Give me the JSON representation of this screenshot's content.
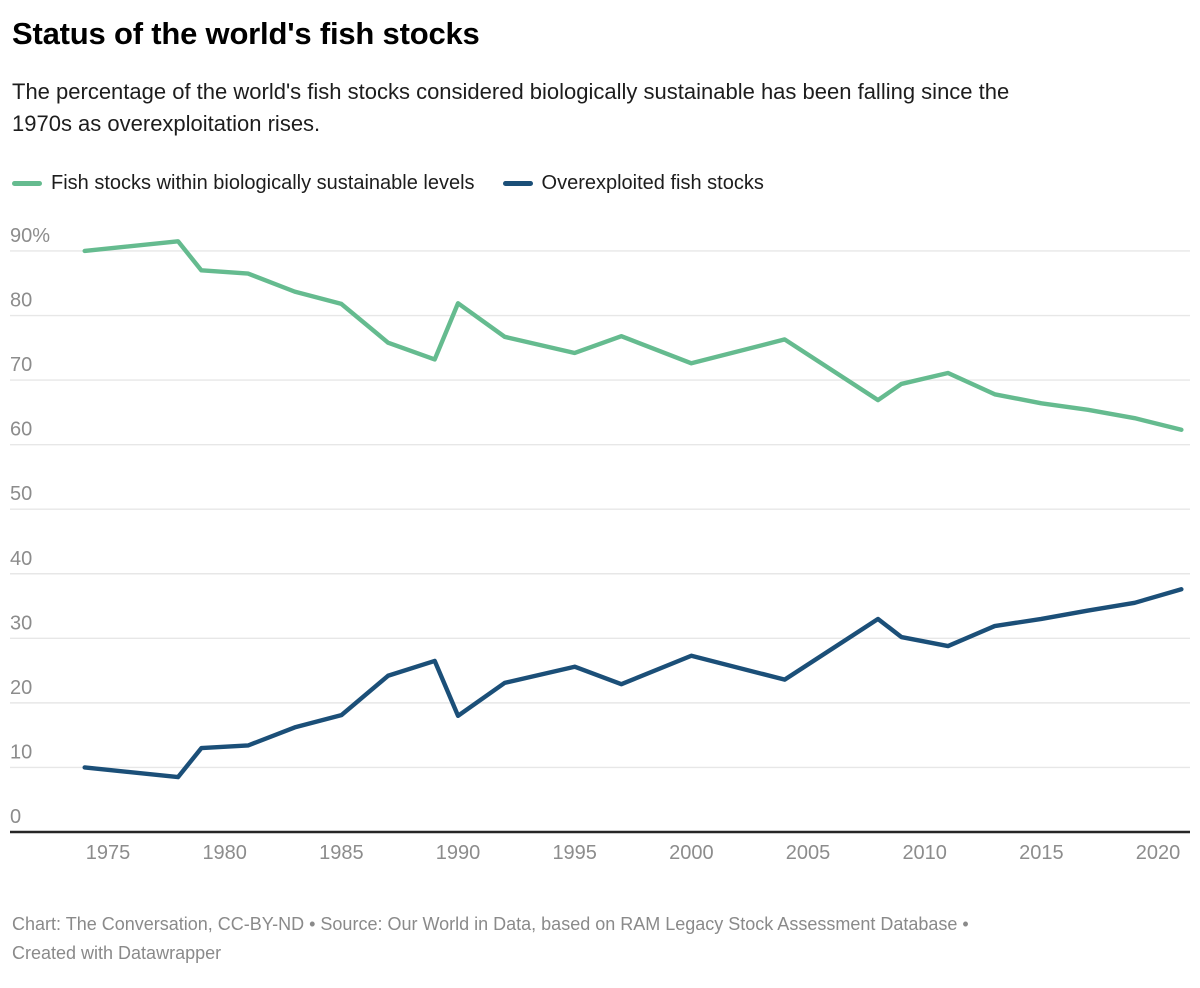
{
  "header": {
    "title": "Status of the world's fish stocks",
    "subtitle": "The percentage of the world's fish stocks considered biologically sustainable has been falling since the 1970s as overexploitation rises."
  },
  "chart_data": {
    "type": "line",
    "title": "Status of the world's fish stocks",
    "x": [
      1974,
      1978,
      1979,
      1981,
      1983,
      1985,
      1987,
      1989,
      1990,
      1992,
      1995,
      1997,
      2000,
      2004,
      2008,
      2009,
      2011,
      2013,
      2015,
      2017,
      2019,
      2021
    ],
    "series": [
      {
        "name": "Fish stocks within biologically sustainable levels",
        "color": "#65bb8f",
        "values": [
          90,
          91.5,
          87,
          86.5,
          83.7,
          81.8,
          75.8,
          73.2,
          81.9,
          76.7,
          74.2,
          76.8,
          72.6,
          76.3,
          66.9,
          69.4,
          71.1,
          67.8,
          66.4,
          65.4,
          64.1,
          62.3
        ]
      },
      {
        "name": "Overexploited fish stocks",
        "color": "#1b4f78",
        "values": [
          10,
          8.5,
          13,
          13.4,
          16.2,
          18.1,
          24.2,
          26.5,
          18,
          23.1,
          25.6,
          22.9,
          27.3,
          23.6,
          33,
          30.2,
          28.8,
          31.9,
          33,
          34.3,
          35.5,
          37.6
        ]
      }
    ],
    "xlim": [
      1974,
      2021
    ],
    "ylim": [
      0,
      98.5
    ],
    "x_ticks": [
      1975,
      1980,
      1985,
      1990,
      1995,
      2000,
      2005,
      2010,
      2015,
      2020
    ],
    "y_ticks": [
      0,
      10,
      20,
      30,
      40,
      50,
      60,
      70,
      80,
      90
    ],
    "y_tick_labels": [
      "0",
      "10",
      "20",
      "30",
      "40",
      "50",
      "60",
      "70",
      "80",
      "90%"
    ],
    "grid": true,
    "legend_position": "top",
    "unit": "%"
  },
  "footer": {
    "line1": "Chart: The Conversation, CC-BY-ND • Source: Our World in Data, based on RAM Legacy Stock Assessment Database  •",
    "line2": "Created with Datawrapper"
  }
}
